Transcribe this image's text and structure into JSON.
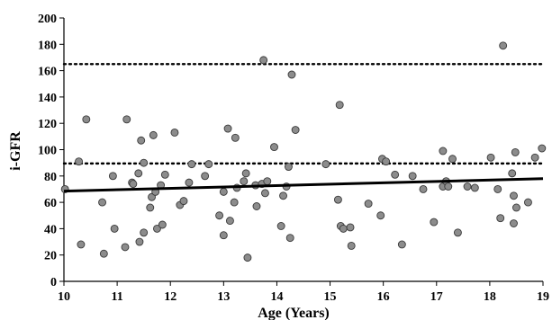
{
  "chart_data": {
    "type": "scatter",
    "xlabel": "Age (Years)",
    "ylabel": "i-GFR",
    "xlim": [
      10,
      19
    ],
    "ylim": [
      0,
      200
    ],
    "xticks": [
      10,
      11,
      12,
      13,
      14,
      15,
      16,
      17,
      18,
      19
    ],
    "yticks": [
      0,
      20,
      40,
      60,
      80,
      100,
      120,
      140,
      160,
      180,
      200
    ],
    "grid": false,
    "legend": "none",
    "point_color": "#8c8c8c",
    "point_edge_color": "#3a3a3a",
    "trend_line": {
      "x": [
        10,
        19
      ],
      "y": [
        68.5,
        78
      ],
      "color": "#000000",
      "style": "solid"
    },
    "reference_lines": [
      {
        "y": 89.5,
        "color": "#000000",
        "style": "dotted"
      },
      {
        "y": 165,
        "color": "#000000",
        "style": "dotted"
      }
    ],
    "points": [
      [
        10.02,
        70
      ],
      [
        10.28,
        91
      ],
      [
        10.32,
        28
      ],
      [
        10.42,
        123
      ],
      [
        10.72,
        60
      ],
      [
        10.75,
        21
      ],
      [
        10.95,
        40
      ],
      [
        10.92,
        80
      ],
      [
        11.18,
        123
      ],
      [
        11.15,
        26
      ],
      [
        11.28,
        75
      ],
      [
        11.3,
        74
      ],
      [
        11.4,
        82
      ],
      [
        11.45,
        107
      ],
      [
        11.5,
        90
      ],
      [
        11.42,
        30
      ],
      [
        11.5,
        37
      ],
      [
        11.62,
        56
      ],
      [
        11.65,
        64
      ],
      [
        11.68,
        111
      ],
      [
        11.72,
        68
      ],
      [
        11.75,
        40
      ],
      [
        11.82,
        73
      ],
      [
        11.85,
        43
      ],
      [
        11.9,
        81
      ],
      [
        12.08,
        113
      ],
      [
        12.18,
        58
      ],
      [
        12.25,
        61
      ],
      [
        12.35,
        75
      ],
      [
        12.4,
        89
      ],
      [
        12.65,
        80
      ],
      [
        12.72,
        89
      ],
      [
        12.92,
        50
      ],
      [
        13.0,
        68
      ],
      [
        13.0,
        35
      ],
      [
        13.08,
        116
      ],
      [
        13.12,
        46
      ],
      [
        13.2,
        60
      ],
      [
        13.22,
        109
      ],
      [
        13.25,
        71
      ],
      [
        13.38,
        76
      ],
      [
        13.42,
        82
      ],
      [
        13.45,
        18
      ],
      [
        13.6,
        73
      ],
      [
        13.62,
        57
      ],
      [
        13.72,
        74
      ],
      [
        13.75,
        168
      ],
      [
        13.78,
        67
      ],
      [
        13.82,
        76
      ],
      [
        13.95,
        102
      ],
      [
        14.08,
        42
      ],
      [
        14.12,
        65
      ],
      [
        14.18,
        72
      ],
      [
        14.22,
        87
      ],
      [
        14.25,
        33
      ],
      [
        14.28,
        157
      ],
      [
        14.35,
        115
      ],
      [
        14.92,
        89
      ],
      [
        15.15,
        62
      ],
      [
        15.18,
        134
      ],
      [
        15.2,
        42
      ],
      [
        15.25,
        40
      ],
      [
        15.38,
        41
      ],
      [
        15.4,
        27
      ],
      [
        15.72,
        59
      ],
      [
        15.95,
        50
      ],
      [
        15.98,
        93
      ],
      [
        16.05,
        91
      ],
      [
        16.22,
        81
      ],
      [
        16.35,
        28
      ],
      [
        16.55,
        80
      ],
      [
        16.75,
        70
      ],
      [
        16.95,
        45
      ],
      [
        17.12,
        72
      ],
      [
        17.12,
        99
      ],
      [
        17.18,
        76
      ],
      [
        17.22,
        72
      ],
      [
        17.3,
        93
      ],
      [
        17.4,
        37
      ],
      [
        17.58,
        72
      ],
      [
        17.72,
        71
      ],
      [
        18.02,
        94
      ],
      [
        18.15,
        70
      ],
      [
        18.2,
        48
      ],
      [
        18.25,
        179
      ],
      [
        18.42,
        82
      ],
      [
        18.45,
        65
      ],
      [
        18.45,
        44
      ],
      [
        18.48,
        98
      ],
      [
        18.5,
        56
      ],
      [
        18.72,
        60
      ],
      [
        18.85,
        94
      ],
      [
        18.98,
        101
      ]
    ]
  }
}
